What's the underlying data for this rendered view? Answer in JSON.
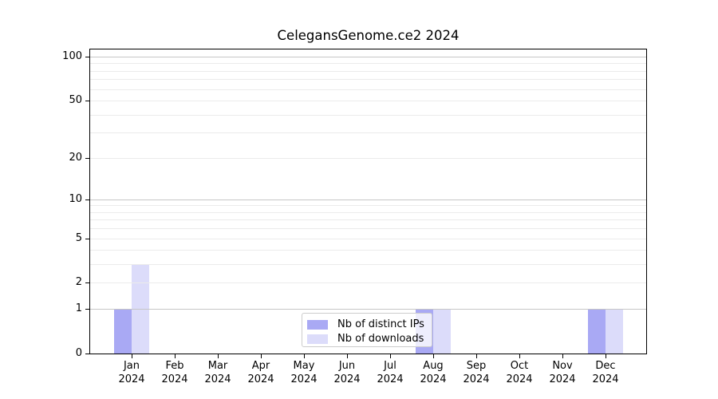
{
  "chart_data": {
    "type": "bar",
    "title": "CelegansGenome.ce2 2024",
    "year": "2024",
    "categories": [
      "Jan",
      "Feb",
      "Mar",
      "Apr",
      "May",
      "Jun",
      "Jul",
      "Aug",
      "Sep",
      "Oct",
      "Nov",
      "Dec"
    ],
    "series": [
      {
        "name": "Nb of distinct IPs",
        "color": "#a9a9f4",
        "values": [
          1,
          0,
          0,
          0,
          0,
          0,
          0,
          1,
          0,
          0,
          0,
          1
        ]
      },
      {
        "name": "Nb of downloads",
        "color": "#dcdcfa",
        "values": [
          3,
          0,
          0,
          0,
          0,
          0,
          0,
          1,
          0,
          0,
          0,
          1
        ]
      }
    ],
    "xlabel": "",
    "ylabel": "",
    "y_scale": "log10(1+x)",
    "ylim": [
      0,
      113
    ],
    "y_ticks_labeled": [
      0,
      1,
      2,
      5,
      10,
      20,
      50,
      100
    ],
    "y_grid_major": [
      1,
      10,
      100
    ],
    "y_grid_minor": [
      2,
      3,
      4,
      5,
      6,
      7,
      8,
      9,
      20,
      30,
      40,
      50,
      60,
      70,
      80,
      90
    ],
    "grid": "on",
    "legend_position": "lower-center-inside"
  },
  "colors": {
    "spine": "#000000",
    "grid_major": "#c6c6c6",
    "grid_minor": "#ebebeb",
    "legend_border": "#cccccc",
    "background": "#ffffff"
  }
}
